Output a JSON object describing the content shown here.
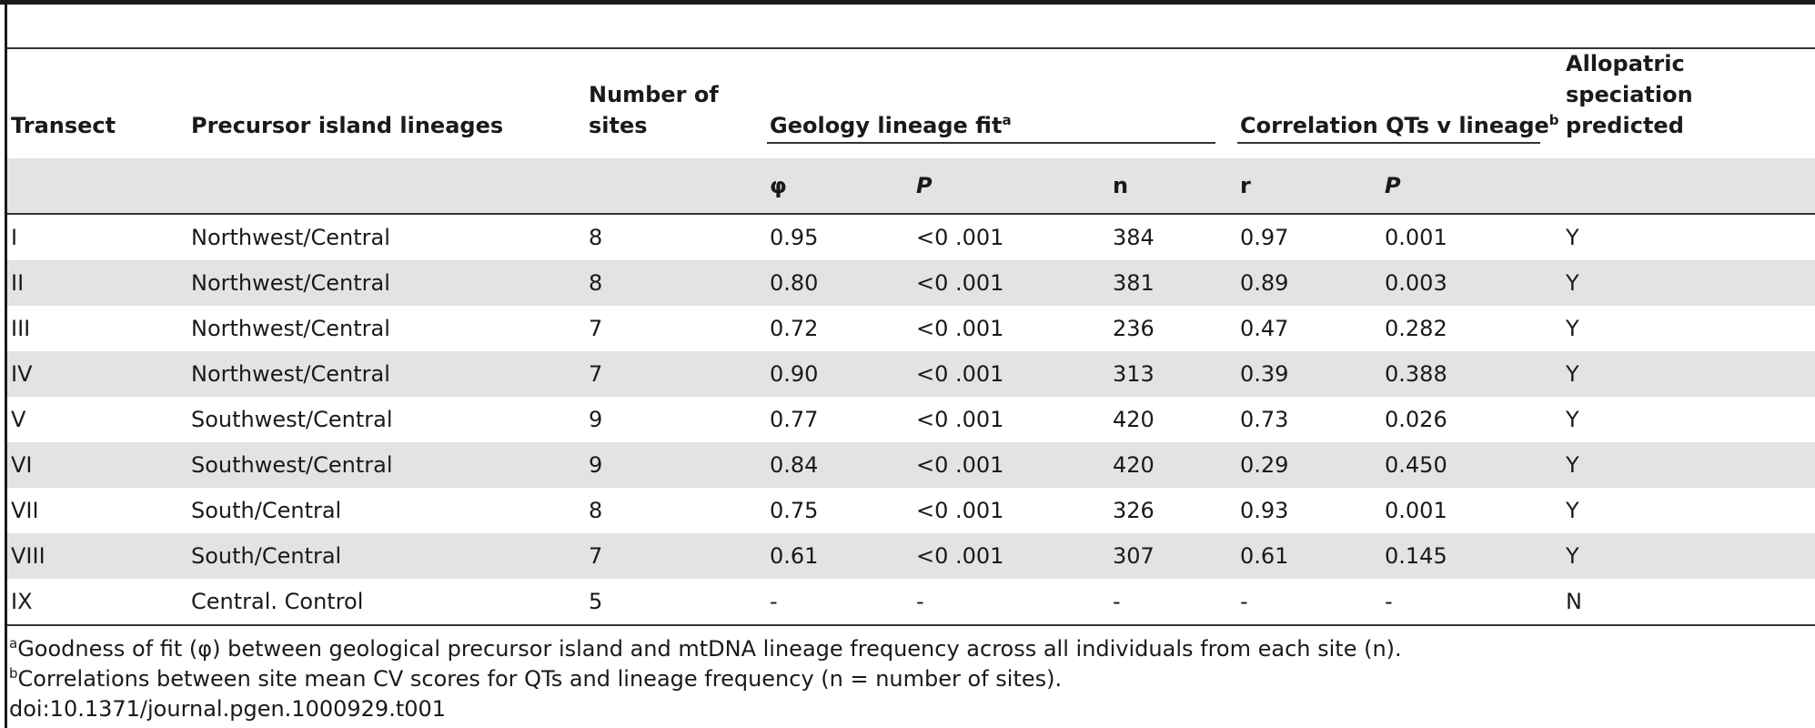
{
  "table": {
    "headers": {
      "transect": "Transect",
      "precursor": "Precursor island lineages",
      "sites": "Number of sites",
      "geology": "Geology lineage fit",
      "geology_sup": "a",
      "correlation": "Correlation QTs v lineage",
      "correlation_sup": "b",
      "allopatric": "Allopatric speciation predicted"
    },
    "subheaders": {
      "phi": "φ",
      "p1": "P",
      "n": "n",
      "r": "r",
      "p2": "P"
    },
    "rows": [
      {
        "transect": "I",
        "precursor": "Northwest/Central",
        "sites": "8",
        "phi": "0.95",
        "p1": "<0 .001",
        "n": "384",
        "r": "0.97",
        "p2": "0.001",
        "allopatric": "Y"
      },
      {
        "transect": "II",
        "precursor": "Northwest/Central",
        "sites": "8",
        "phi": "0.80",
        "p1": "<0 .001",
        "n": "381",
        "r": "0.89",
        "p2": "0.003",
        "allopatric": "Y"
      },
      {
        "transect": "III",
        "precursor": "Northwest/Central",
        "sites": "7",
        "phi": "0.72",
        "p1": "<0 .001",
        "n": "236",
        "r": "0.47",
        "p2": "0.282",
        "allopatric": "Y"
      },
      {
        "transect": "IV",
        "precursor": "Northwest/Central",
        "sites": "7",
        "phi": "0.90",
        "p1": "<0 .001",
        "n": "313",
        "r": "0.39",
        "p2": "0.388",
        "allopatric": "Y"
      },
      {
        "transect": "V",
        "precursor": "Southwest/Central",
        "sites": "9",
        "phi": "0.77",
        "p1": "<0 .001",
        "n": "420",
        "r": "0.73",
        "p2": "0.026",
        "allopatric": "Y"
      },
      {
        "transect": "VI",
        "precursor": "Southwest/Central",
        "sites": "9",
        "phi": "0.84",
        "p1": "<0 .001",
        "n": "420",
        "r": "0.29",
        "p2": "0.450",
        "allopatric": "Y"
      },
      {
        "transect": "VII",
        "precursor": "South/Central",
        "sites": "8",
        "phi": "0.75",
        "p1": "<0 .001",
        "n": "326",
        "r": "0.93",
        "p2": "0.001",
        "allopatric": "Y"
      },
      {
        "transect": "VIII",
        "precursor": "South/Central",
        "sites": "7",
        "phi": "0.61",
        "p1": "<0 .001",
        "n": "307",
        "r": "0.61",
        "p2": "0.145",
        "allopatric": "Y"
      },
      {
        "transect": "IX",
        "precursor": "Central. Control",
        "sites": "5",
        "phi": "-",
        "p1": "-",
        "n": "-",
        "r": "-",
        "p2": "-",
        "allopatric": "N"
      }
    ]
  },
  "footnotes": {
    "a_mark": "a",
    "a_text": "Goodness of fit (φ) between geological precursor island and mtDNA lineage frequency across all individuals from each site (n).",
    "b_mark": "b",
    "b_text": "Correlations between site mean CV scores for QTs and lineage frequency (n = number of sites).",
    "doi": "doi:10.1371/journal.pgen.1000929.t001"
  }
}
